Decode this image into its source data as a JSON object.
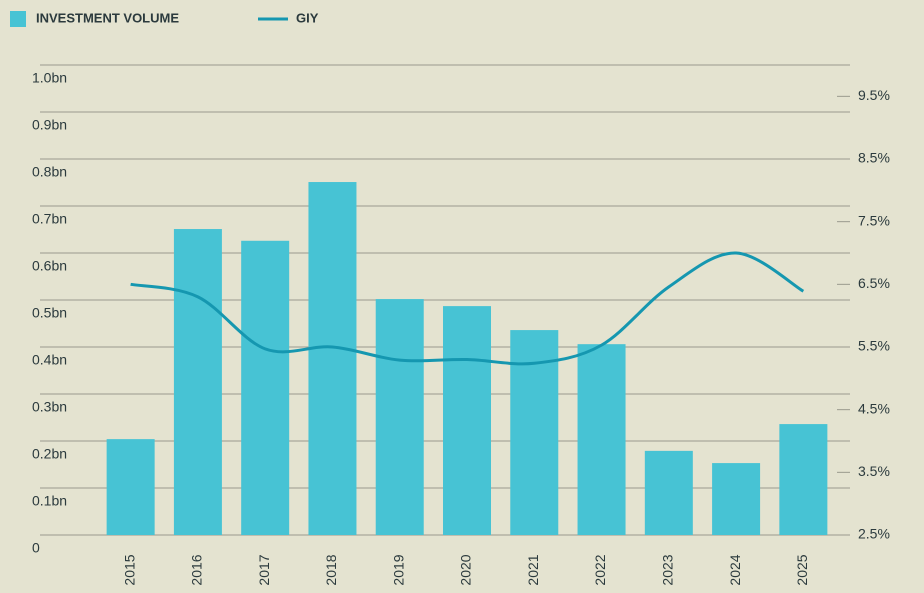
{
  "chart_data": {
    "type": "bar",
    "categories": [
      "2015",
      "2016",
      "2017",
      "2018",
      "2019",
      "2020",
      "2021",
      "2022",
      "2023",
      "2024",
      "2025"
    ],
    "series": [
      {
        "name": "INVESTMENT VOLUME",
        "color": "#47c3d4",
        "values": [
          0.204,
          0.651,
          0.626,
          0.751,
          0.502,
          0.487,
          0.436,
          0.406,
          0.179,
          0.153,
          0.236
        ]
      },
      {
        "name": "GIY",
        "type": "line",
        "axis": "y2",
        "color": "#1597b0",
        "values": [
          6.5,
          6.3,
          5.47,
          5.5,
          5.29,
          5.3,
          5.24,
          5.53,
          6.46,
          7.0,
          6.39
        ]
      }
    ],
    "ylim": [
      0,
      1.0
    ],
    "yticks": [
      0,
      {
        "value": 0.1,
        "label": "0.1bn"
      },
      {
        "value": 0.2,
        "label": "0.2bn"
      },
      {
        "value": 0.3,
        "label": "0.3bn"
      },
      {
        "value": 0.4,
        "label": "0.4bn"
      },
      {
        "value": 0.5,
        "label": "0.5bn"
      },
      {
        "value": 0.6,
        "label": "0.6bn"
      },
      {
        "value": 0.7,
        "label": "0.7bn"
      },
      {
        "value": 0.8,
        "label": "0.8bn"
      },
      {
        "value": 0.9,
        "label": "0.9bn"
      },
      {
        "value": 1.0,
        "label": "1.0bn"
      }
    ],
    "y2lim": [
      2.5,
      10
    ],
    "y2ticks": [
      {
        "value": 2.5,
        "label": "2.5%"
      },
      {
        "value": 3.5,
        "label": "3.5%"
      },
      {
        "value": 4.5,
        "label": "4.5%"
      },
      {
        "value": 5.5,
        "label": "5.5%"
      },
      {
        "value": 6.5,
        "label": "6.5%"
      },
      {
        "value": 7.5,
        "label": "7.5%"
      },
      {
        "value": 8.5,
        "label": "8.5%"
      },
      {
        "value": 9.5,
        "label": "9.5%"
      }
    ],
    "grid": true,
    "legend": "top-left"
  }
}
